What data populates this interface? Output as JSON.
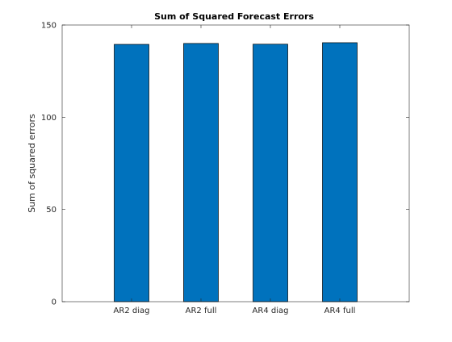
{
  "chart_data": {
    "type": "bar",
    "title": "Sum of Squared Forecast Errors",
    "xlabel": "",
    "ylabel": "Sum of squared errors",
    "categories": [
      "AR2 diag",
      "AR2 full",
      "AR4 diag",
      "AR4 full"
    ],
    "values": [
      139.5,
      140.0,
      139.6,
      140.4
    ],
    "ylim": [
      0,
      150
    ],
    "xlim": [
      0,
      5
    ],
    "yticks": [
      0,
      50,
      100,
      150
    ],
    "ytick_labels": [
      "0",
      "50",
      "100",
      "150"
    ],
    "bar_color": "#0072bd",
    "bar_edge_color": "#000000",
    "grid": false,
    "legend": "none"
  }
}
